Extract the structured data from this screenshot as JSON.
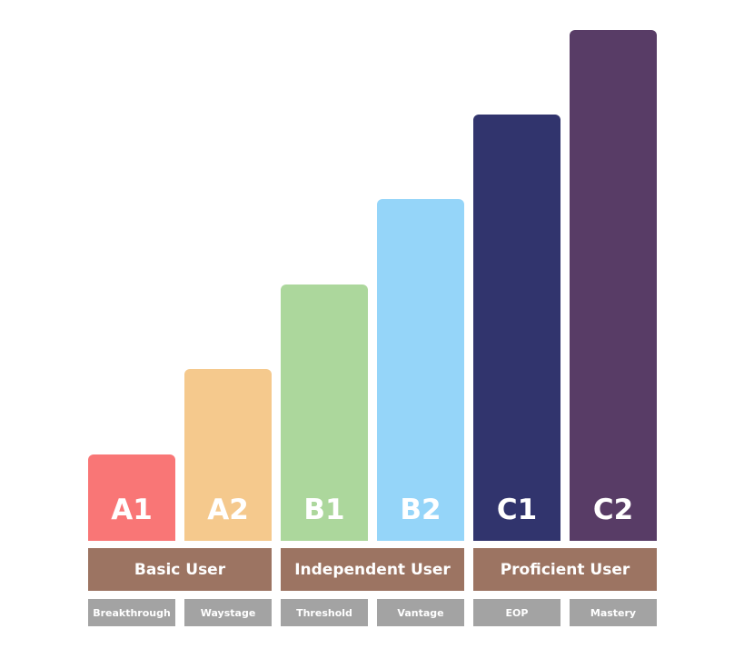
{
  "levels": [
    {
      "code": "A1",
      "name": "Breakthrough"
    },
    {
      "code": "A2",
      "name": "Waystage"
    },
    {
      "code": "B1",
      "name": "Threshold"
    },
    {
      "code": "B2",
      "name": "Vantage"
    },
    {
      "code": "C1",
      "name": "EOP"
    },
    {
      "code": "C2",
      "name": "Mastery"
    }
  ],
  "groups": [
    "Basic User",
    "Independent User",
    "Proficient User"
  ]
}
